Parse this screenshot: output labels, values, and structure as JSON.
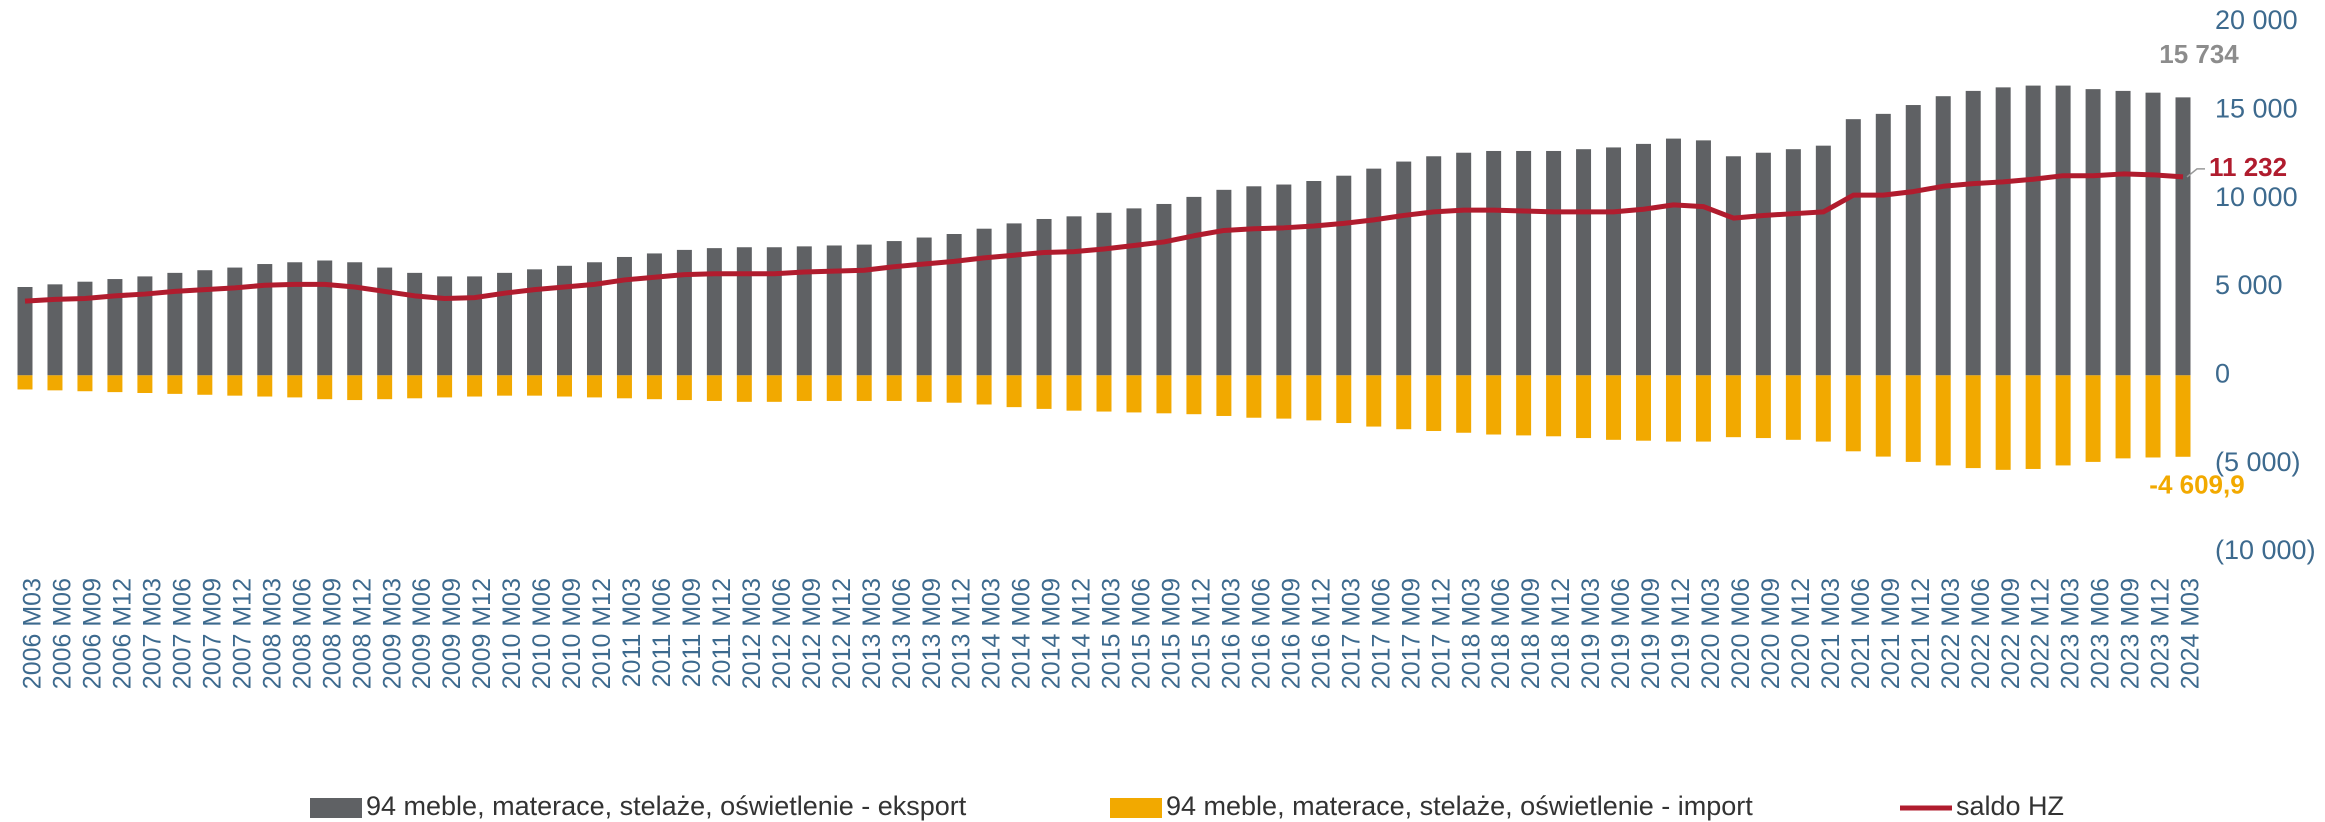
{
  "chart_data": {
    "type": "bar",
    "categories": [
      "2006 M03",
      "2006 M06",
      "2006 M09",
      "2006 M12",
      "2007 M03",
      "2007 M06",
      "2007 M09",
      "2007 M12",
      "2008 M03",
      "2008 M06",
      "2008 M09",
      "2008 M12",
      "2009 M03",
      "2009 M06",
      "2009 M09",
      "2009 M12",
      "2010 M03",
      "2010 M06",
      "2010 M09",
      "2010 M12",
      "2011 M03",
      "2011 M06",
      "2011 M09",
      "2011 M12",
      "2012 M03",
      "2012 M06",
      "2012 M09",
      "2012 M12",
      "2013 M03",
      "2013 M06",
      "2013 M09",
      "2013 M12",
      "2014 M03",
      "2014 M06",
      "2014 M09",
      "2014 M12",
      "2015 M03",
      "2015 M06",
      "2015 M09",
      "2015 M12",
      "2016 M03",
      "2016 M06",
      "2016 M09",
      "2016 M12",
      "2017 M03",
      "2017 M06",
      "2017 M09",
      "2017 M12",
      "2018 M03",
      "2018 M06",
      "2018 M09",
      "2018 M12",
      "2019 M03",
      "2019 M06",
      "2019 M09",
      "2019 M12",
      "2020 M03",
      "2020 M06",
      "2020 M09",
      "2020 M12",
      "2021 M03",
      "2021 M06",
      "2021 M09",
      "2021 M12",
      "2022 M03",
      "2022 M06",
      "2022 M09",
      "2022 M12",
      "2023 M03",
      "2023 M06",
      "2023 M09",
      "2023 M12",
      "2024 M03"
    ],
    "series": [
      {
        "name": "94 meble, materace, stelaże, oświetlenie - eksport",
        "color": "#5f6164",
        "kind": "bar",
        "values": [
          5000,
          5150,
          5300,
          5450,
          5600,
          5800,
          5950,
          6100,
          6300,
          6400,
          6500,
          6400,
          6100,
          5800,
          5600,
          5600,
          5800,
          6000,
          6200,
          6400,
          6700,
          6900,
          7100,
          7200,
          7250,
          7250,
          7300,
          7350,
          7400,
          7600,
          7800,
          8000,
          8300,
          8600,
          8850,
          9000,
          9200,
          9450,
          9700,
          10100,
          10500,
          10700,
          10800,
          11000,
          11300,
          11700,
          12100,
          12400,
          12600,
          12700,
          12700,
          12700,
          12800,
          12900,
          13100,
          13400,
          13300,
          12400,
          12600,
          12800,
          13000,
          14500,
          14800,
          15300,
          15800,
          16100,
          16300,
          16400,
          16400,
          16200,
          16100,
          16000,
          15734
        ],
        "value_labels": [
          null,
          null,
          null,
          null,
          null,
          null,
          null,
          null,
          null,
          null,
          null,
          null,
          null,
          null,
          null,
          null,
          null,
          null,
          null,
          null,
          null,
          null,
          null,
          null,
          null,
          null,
          null,
          null,
          null,
          null,
          null,
          null,
          null,
          null,
          null,
          null,
          null,
          null,
          null,
          null,
          null,
          null,
          null,
          null,
          null,
          null,
          null,
          null,
          null,
          null,
          null,
          null,
          null,
          null,
          null,
          null,
          null,
          null,
          null,
          null,
          null,
          null,
          null,
          null,
          null,
          null,
          null,
          null,
          null,
          null,
          null,
          null,
          "15 734"
        ],
        "label_color": "#8c8c8c"
      },
      {
        "name": "94 meble, materace, stelaże, oświetlenie - import",
        "color": "#f2a900",
        "kind": "bar",
        "values": [
          -800,
          -850,
          -900,
          -950,
          -1000,
          -1050,
          -1100,
          -1150,
          -1200,
          -1250,
          -1350,
          -1400,
          -1350,
          -1300,
          -1250,
          -1200,
          -1150,
          -1150,
          -1200,
          -1250,
          -1300,
          -1350,
          -1400,
          -1450,
          -1500,
          -1500,
          -1450,
          -1450,
          -1450,
          -1450,
          -1500,
          -1550,
          -1650,
          -1800,
          -1900,
          -2000,
          -2050,
          -2100,
          -2150,
          -2200,
          -2300,
          -2400,
          -2450,
          -2550,
          -2700,
          -2900,
          -3050,
          -3150,
          -3250,
          -3350,
          -3400,
          -3450,
          -3550,
          -3650,
          -3700,
          -3750,
          -3750,
          -3500,
          -3550,
          -3650,
          -3750,
          -4300,
          -4600,
          -4900,
          -5100,
          -5250,
          -5350,
          -5300,
          -5100,
          -4900,
          -4700,
          -4650,
          -4609.9
        ],
        "value_labels": [
          null,
          null,
          null,
          null,
          null,
          null,
          null,
          null,
          null,
          null,
          null,
          null,
          null,
          null,
          null,
          null,
          null,
          null,
          null,
          null,
          null,
          null,
          null,
          null,
          null,
          null,
          null,
          null,
          null,
          null,
          null,
          null,
          null,
          null,
          null,
          null,
          null,
          null,
          null,
          null,
          null,
          null,
          null,
          null,
          null,
          null,
          null,
          null,
          null,
          null,
          null,
          null,
          null,
          null,
          null,
          null,
          null,
          null,
          null,
          null,
          null,
          null,
          null,
          null,
          null,
          null,
          null,
          null,
          null,
          null,
          null,
          null,
          "-4 609,9"
        ],
        "label_color": "#f2a900"
      },
      {
        "name": "saldo HZ",
        "color": "#b01c2e",
        "kind": "line",
        "values": [
          4200,
          4300,
          4350,
          4500,
          4600,
          4750,
          4850,
          4950,
          5100,
          5150,
          5150,
          5000,
          4750,
          4500,
          4350,
          4400,
          4650,
          4850,
          5000,
          5150,
          5400,
          5550,
          5700,
          5750,
          5750,
          5750,
          5850,
          5900,
          5950,
          6150,
          6300,
          6450,
          6650,
          6800,
          6950,
          7000,
          7150,
          7350,
          7550,
          7900,
          8200,
          8300,
          8350,
          8450,
          8600,
          8800,
          9050,
          9250,
          9350,
          9350,
          9300,
          9250,
          9250,
          9250,
          9400,
          9650,
          9550,
          8900,
          9050,
          9150,
          9250,
          10200,
          10200,
          10400,
          10700,
          10850,
          10950,
          11100,
          11300,
          11300,
          11400,
          11350,
          11232
        ],
        "value_labels": [
          null,
          null,
          null,
          null,
          null,
          null,
          null,
          null,
          null,
          null,
          null,
          null,
          null,
          null,
          null,
          null,
          null,
          null,
          null,
          null,
          null,
          null,
          null,
          null,
          null,
          null,
          null,
          null,
          null,
          null,
          null,
          null,
          null,
          null,
          null,
          null,
          null,
          null,
          null,
          null,
          null,
          null,
          null,
          null,
          null,
          null,
          null,
          null,
          null,
          null,
          null,
          null,
          null,
          null,
          null,
          null,
          null,
          null,
          null,
          null,
          null,
          null,
          null,
          null,
          null,
          null,
          null,
          null,
          null,
          null,
          null,
          null,
          "11 232"
        ],
        "label_color": "#b01c2e"
      }
    ],
    "ylim": [
      -10000,
      20000
    ],
    "yticks": [
      {
        "value": -10000,
        "label": "(10 000)"
      },
      {
        "value": -5000,
        "label": "(5 000)"
      },
      0,
      {
        "value": 5000,
        "label": "5 000"
      },
      {
        "value": 10000,
        "label": "10 000"
      },
      {
        "value": 15000,
        "label": "15 000"
      },
      {
        "value": 20000,
        "label": "20 000"
      }
    ],
    "legend": "bottom"
  }
}
